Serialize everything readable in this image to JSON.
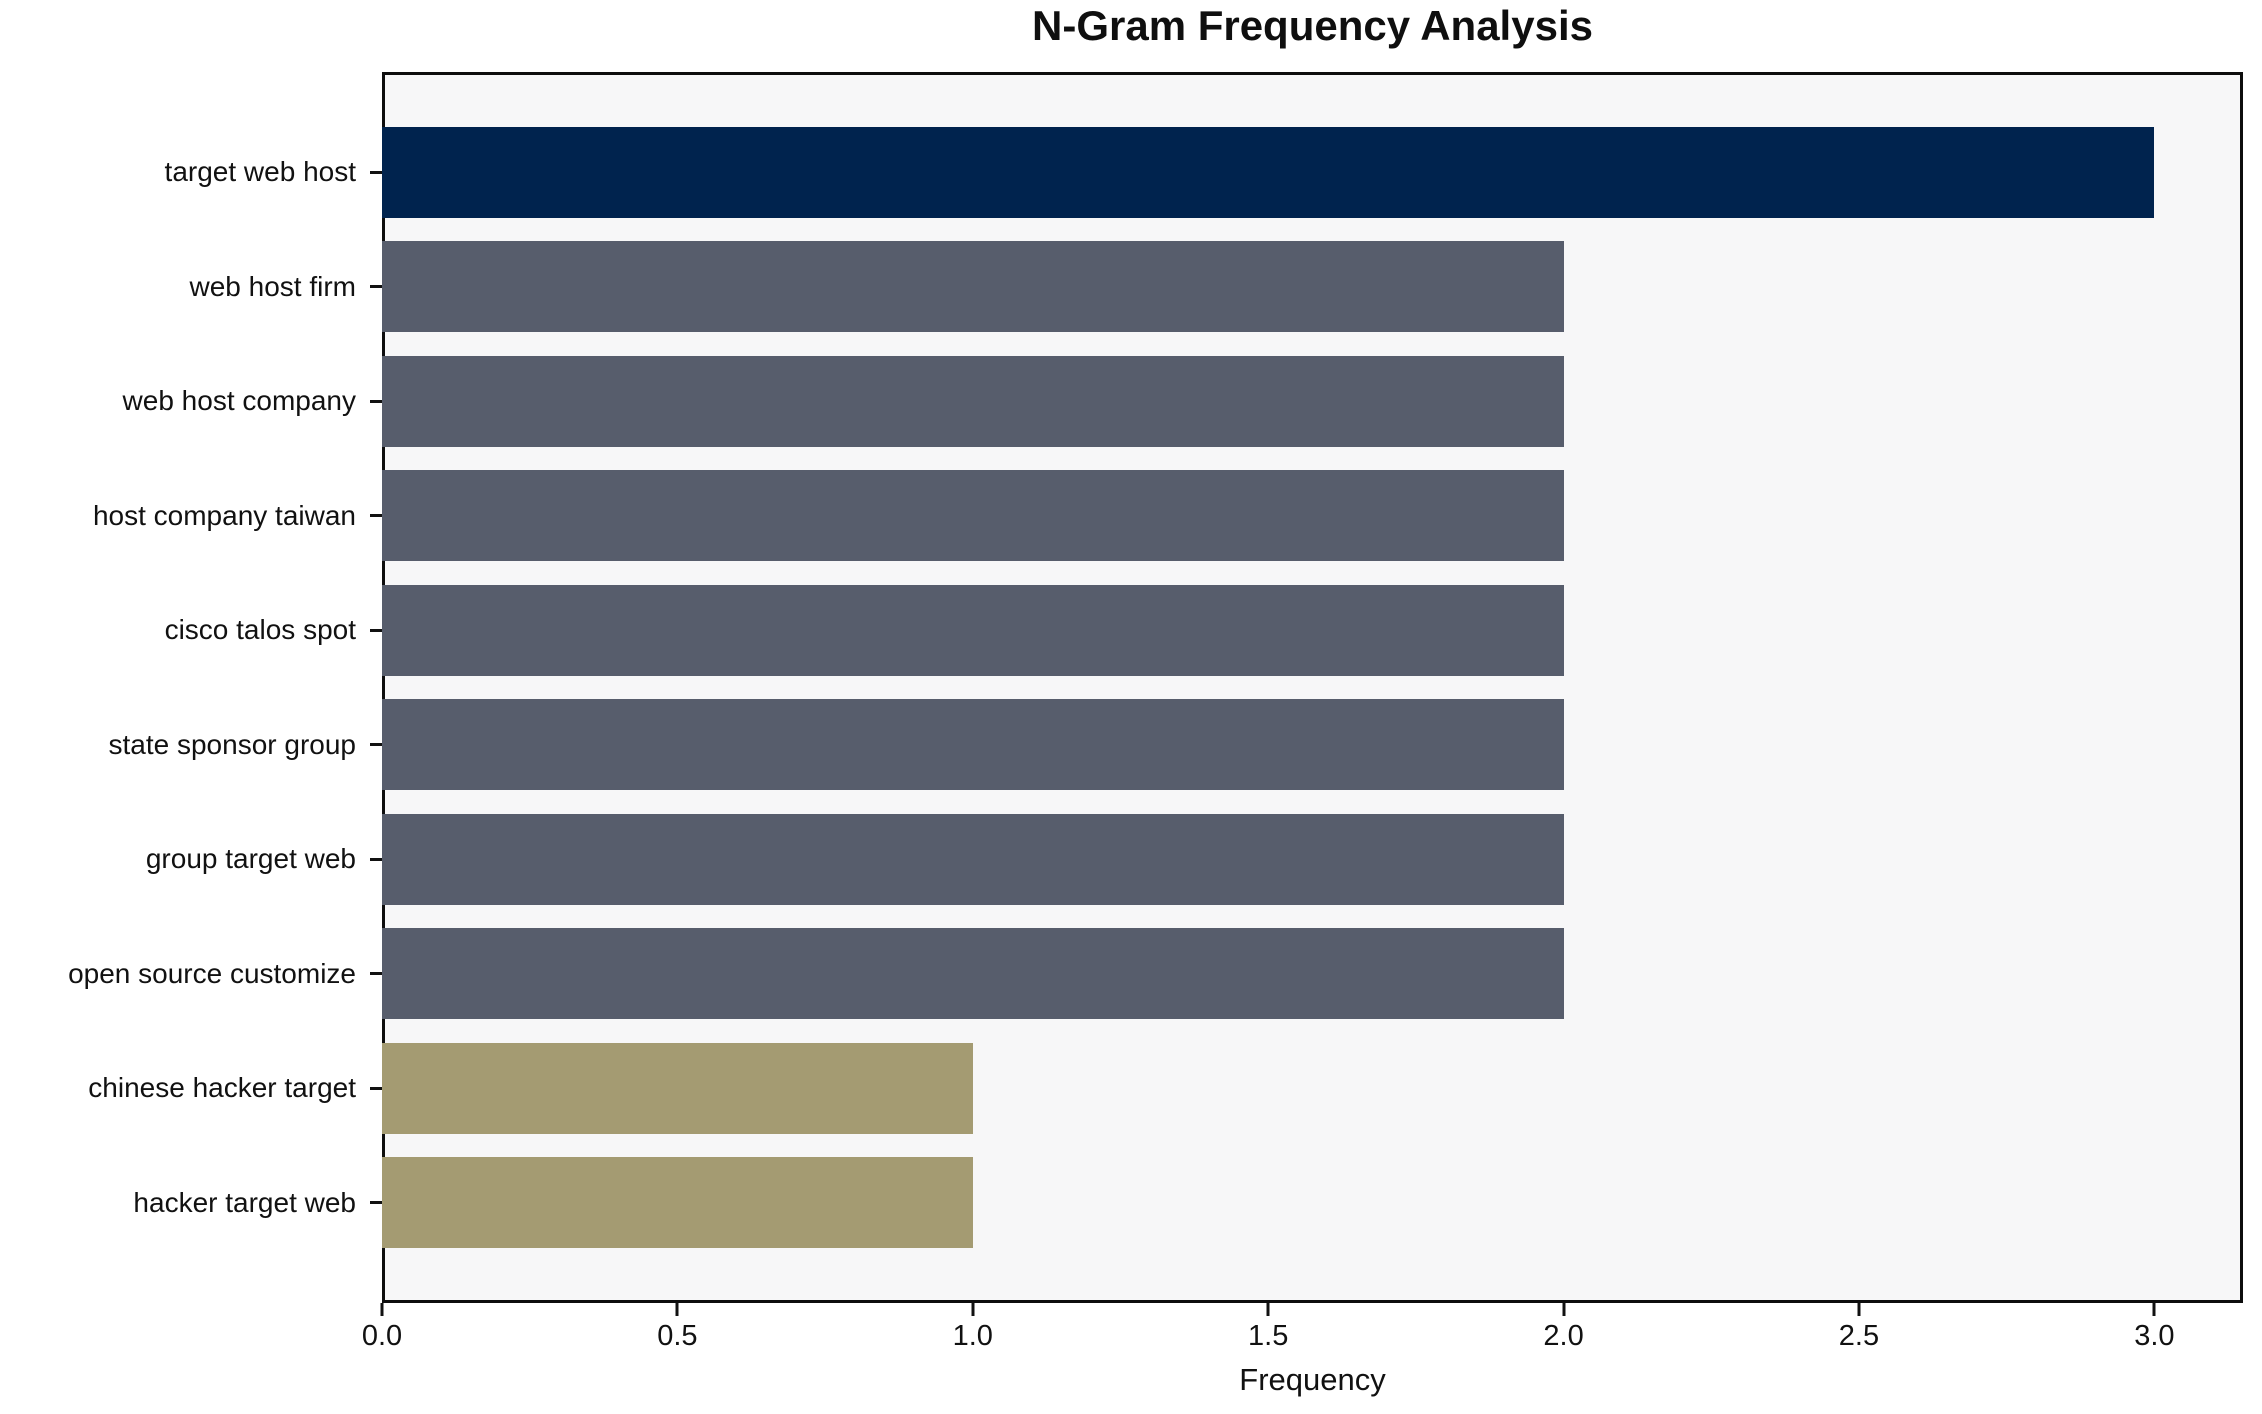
{
  "chart_data": {
    "type": "bar",
    "orientation": "horizontal",
    "title": "N-Gram Frequency Analysis",
    "xlabel": "Frequency",
    "ylabel": "",
    "categories": [
      "target web host",
      "web host firm",
      "web host company",
      "host company taiwan",
      "cisco talos spot",
      "state sponsor group",
      "group target web",
      "open source customize",
      "chinese hacker target",
      "hacker target web"
    ],
    "values": [
      3,
      2,
      2,
      2,
      2,
      2,
      2,
      2,
      1,
      1
    ],
    "bar_colors": [
      "#00234e",
      "#575d6c",
      "#575d6c",
      "#575d6c",
      "#575d6c",
      "#575d6c",
      "#575d6c",
      "#575d6c",
      "#a49b72",
      "#a49b72"
    ],
    "xlim": [
      0,
      3.15
    ],
    "xticks": [
      0.0,
      0.5,
      1.0,
      1.5,
      2.0,
      2.5,
      3.0
    ],
    "xtick_labels": [
      "0.0",
      "0.5",
      "1.0",
      "1.5",
      "2.0",
      "2.5",
      "3.0"
    ],
    "grid": false,
    "legend": null,
    "plot_bg": "#f7f7f8",
    "fig_bg": "#ffffff",
    "spine_color": "#0d0d0d"
  }
}
